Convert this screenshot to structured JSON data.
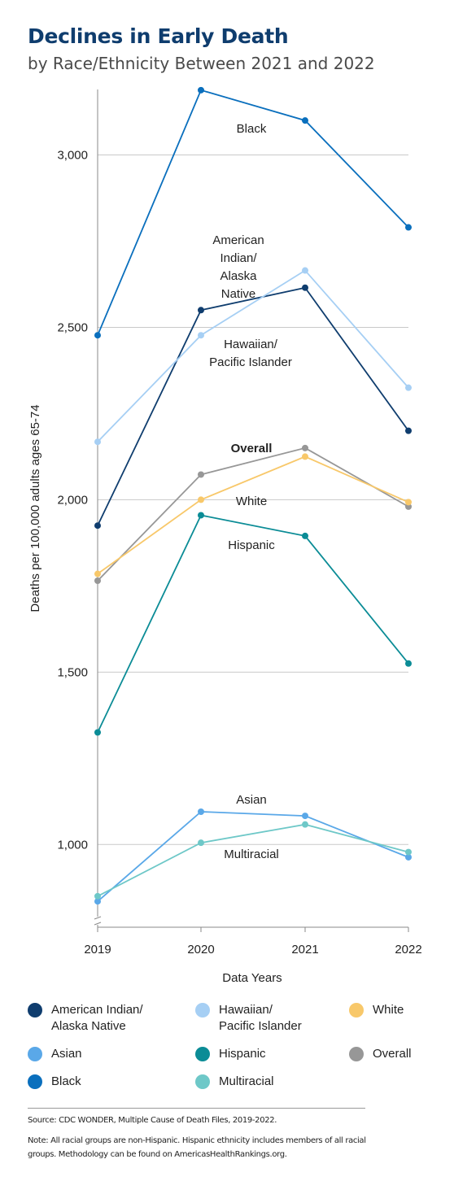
{
  "header": {
    "title": "Declines in Early Death",
    "subtitle": "by Race/Ethnicity Between 2021 and 2022"
  },
  "chart_data": {
    "type": "line",
    "x": [
      "2019",
      "2020",
      "2021",
      "2022"
    ],
    "xlabel": "Data Years",
    "ylabel": "Deaths per 100,000 adults ages 65-74",
    "yticks": [
      1000,
      1500,
      2000,
      2500,
      3000
    ],
    "ytick_labels": [
      "1,000",
      "1,500",
      "2,000",
      "2,500",
      "3,000"
    ],
    "ylim": [
      760,
      3190
    ],
    "axis_break": true,
    "grid": "horizontal",
    "legend_position": "bottom",
    "series": [
      {
        "name": "Black",
        "color": "#0a6fbd",
        "values": [
          2477,
          3188,
          3100,
          2790
        ],
        "bold": false
      },
      {
        "name": "American Indian/\nAlaska Native",
        "color": "#0f3d6e",
        "values": [
          1925,
          2550,
          2615,
          2200
        ],
        "bold": false
      },
      {
        "name": "Hawaiian/\nPacific Islander",
        "color": "#a6cff4",
        "values": [
          2168,
          2477,
          2665,
          2325
        ],
        "bold": false
      },
      {
        "name": "Overall",
        "color": "#979797",
        "values": [
          1765,
          2073,
          2150,
          1980
        ],
        "bold": true
      },
      {
        "name": "White",
        "color": "#f8c86a",
        "values": [
          1785,
          2000,
          2125,
          1993
        ],
        "bold": false
      },
      {
        "name": "Hispanic",
        "color": "#0b8c96",
        "values": [
          1325,
          1955,
          1895,
          1525
        ],
        "bold": false
      },
      {
        "name": "Asian",
        "color": "#5aa8e8",
        "values": [
          835,
          1095,
          1083,
          963
        ],
        "bold": false
      },
      {
        "name": "Multiracial",
        "color": "#6ec8c8",
        "values": [
          850,
          1005,
          1058,
          978
        ],
        "bold": false
      }
    ],
    "legend_order": [
      "American Indian/\nAlaska Native",
      "Hawaiian/\nPacific Islander",
      "White",
      "Asian",
      "Hispanic",
      "Overall",
      "Black",
      "Multiracial"
    ]
  },
  "footer": {
    "source": "Source: CDC WONDER, Multiple Cause of Death Files, 2019-2022.",
    "note": "Note: All racial groups are non-Hispanic. Hispanic ethnicity includes members of all racial groups. Methodology can be found on AmericasHealthRankings.org."
  }
}
